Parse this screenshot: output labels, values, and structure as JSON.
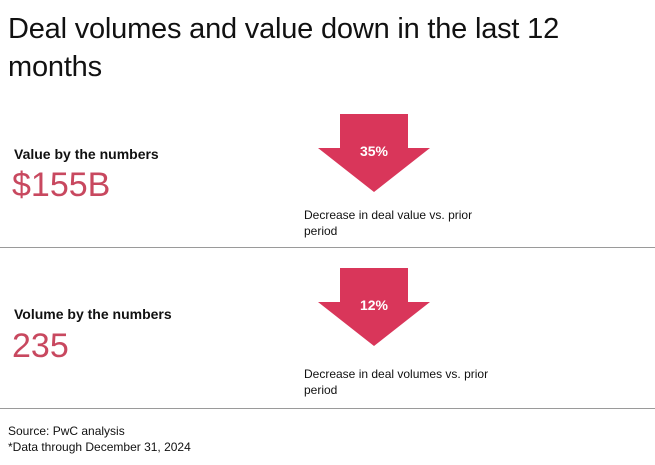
{
  "title": "Deal volumes and value down in the last 12 months",
  "colors": {
    "accent": "#c8485f",
    "arrow": "#d9365a",
    "divider": "#9a9a9a"
  },
  "sections": [
    {
      "label": "Value by the numbers",
      "value": "$155B",
      "change_percent": "35%",
      "direction_icon": "down-arrow-icon",
      "caption": "Decrease in deal value vs. prior period"
    },
    {
      "label": "Volume by the numbers",
      "value": "235",
      "change_percent": "12%",
      "direction_icon": "down-arrow-icon",
      "caption": "Decrease in deal volumes vs. prior period"
    }
  ],
  "footer": {
    "source": "Source: PwC analysis",
    "note": "*Data through December 31, 2024"
  }
}
